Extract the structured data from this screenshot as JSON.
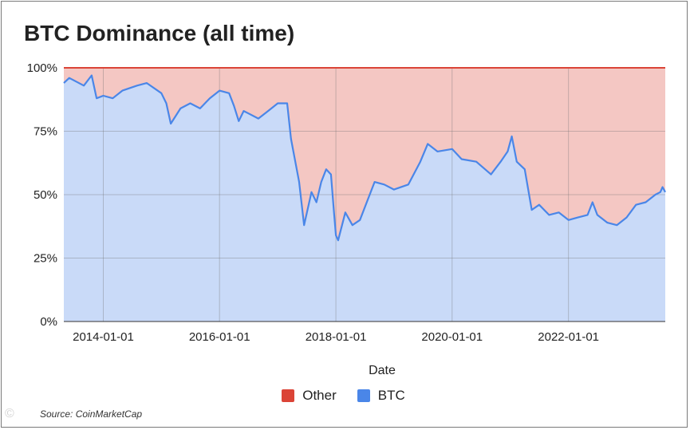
{
  "chart_data": {
    "type": "area",
    "stacked": true,
    "title": "BTC Dominance (all time)",
    "xlabel": "Date",
    "ylabel": "",
    "x_range": [
      "2013-04-28",
      "2023-09-01"
    ],
    "ylim": [
      0,
      100
    ],
    "y_ticks": [
      "0%",
      "25%",
      "50%",
      "75%",
      "100%"
    ],
    "x_ticks": [
      "2014-01-01",
      "2016-01-01",
      "2018-01-01",
      "2020-01-01",
      "2022-01-01"
    ],
    "grid": true,
    "legend_position": "bottom",
    "series": [
      {
        "name": "Other",
        "color": "#db4437",
        "fill": "#f4c7c3",
        "note": "remainder to 100%"
      },
      {
        "name": "BTC",
        "color": "#4a86e8",
        "fill": "#c9daf8",
        "points": [
          [
            "2013-04-28",
            94
          ],
          [
            "2013-06-01",
            96
          ],
          [
            "2013-09-01",
            93
          ],
          [
            "2013-10-20",
            97
          ],
          [
            "2013-11-20",
            88
          ],
          [
            "2014-01-01",
            89
          ],
          [
            "2014-03-01",
            88
          ],
          [
            "2014-05-01",
            91
          ],
          [
            "2014-08-01",
            93
          ],
          [
            "2014-10-01",
            94
          ],
          [
            "2015-01-01",
            90
          ],
          [
            "2015-02-01",
            86
          ],
          [
            "2015-03-01",
            78
          ],
          [
            "2015-05-01",
            84
          ],
          [
            "2015-07-01",
            86
          ],
          [
            "2015-09-01",
            84
          ],
          [
            "2015-11-01",
            88
          ],
          [
            "2016-01-01",
            91
          ],
          [
            "2016-03-01",
            90
          ],
          [
            "2016-04-01",
            85
          ],
          [
            "2016-05-01",
            79
          ],
          [
            "2016-06-01",
            83
          ],
          [
            "2016-07-01",
            82
          ],
          [
            "2016-09-01",
            80
          ],
          [
            "2016-11-01",
            83
          ],
          [
            "2017-01-01",
            86
          ],
          [
            "2017-03-01",
            86
          ],
          [
            "2017-03-25",
            72
          ],
          [
            "2017-04-15",
            65
          ],
          [
            "2017-05-15",
            55
          ],
          [
            "2017-06-15",
            38
          ],
          [
            "2017-08-01",
            51
          ],
          [
            "2017-09-01",
            47
          ],
          [
            "2017-10-01",
            55
          ],
          [
            "2017-11-01",
            60
          ],
          [
            "2017-12-01",
            58
          ],
          [
            "2017-12-20",
            43
          ],
          [
            "2018-01-01",
            34
          ],
          [
            "2018-01-15",
            32
          ],
          [
            "2018-03-01",
            43
          ],
          [
            "2018-04-15",
            38
          ],
          [
            "2018-06-01",
            40
          ],
          [
            "2018-09-01",
            55
          ],
          [
            "2018-11-01",
            54
          ],
          [
            "2019-01-01",
            52
          ],
          [
            "2019-04-01",
            54
          ],
          [
            "2019-06-15",
            63
          ],
          [
            "2019-08-01",
            70
          ],
          [
            "2019-10-01",
            67
          ],
          [
            "2020-01-01",
            68
          ],
          [
            "2020-03-01",
            64
          ],
          [
            "2020-06-01",
            63
          ],
          [
            "2020-09-01",
            58
          ],
          [
            "2020-11-01",
            63
          ],
          [
            "2020-12-15",
            67
          ],
          [
            "2021-01-10",
            73
          ],
          [
            "2021-02-10",
            63
          ],
          [
            "2021-04-01",
            60
          ],
          [
            "2021-05-15",
            44
          ],
          [
            "2021-07-01",
            46
          ],
          [
            "2021-09-01",
            42
          ],
          [
            "2021-11-01",
            43
          ],
          [
            "2022-01-01",
            40
          ],
          [
            "2022-03-01",
            41
          ],
          [
            "2022-05-01",
            42
          ],
          [
            "2022-06-01",
            47
          ],
          [
            "2022-07-01",
            42
          ],
          [
            "2022-09-01",
            39
          ],
          [
            "2022-11-01",
            38
          ],
          [
            "2023-01-01",
            41
          ],
          [
            "2023-03-01",
            46
          ],
          [
            "2023-05-01",
            47
          ],
          [
            "2023-07-01",
            50
          ],
          [
            "2023-08-01",
            51
          ],
          [
            "2023-08-15",
            53
          ],
          [
            "2023-09-01",
            51
          ]
        ]
      }
    ]
  },
  "legend": {
    "other_label": "Other",
    "btc_label": "BTC"
  },
  "source_note": "Source: CoinMarketCap",
  "watermark_text": "©"
}
